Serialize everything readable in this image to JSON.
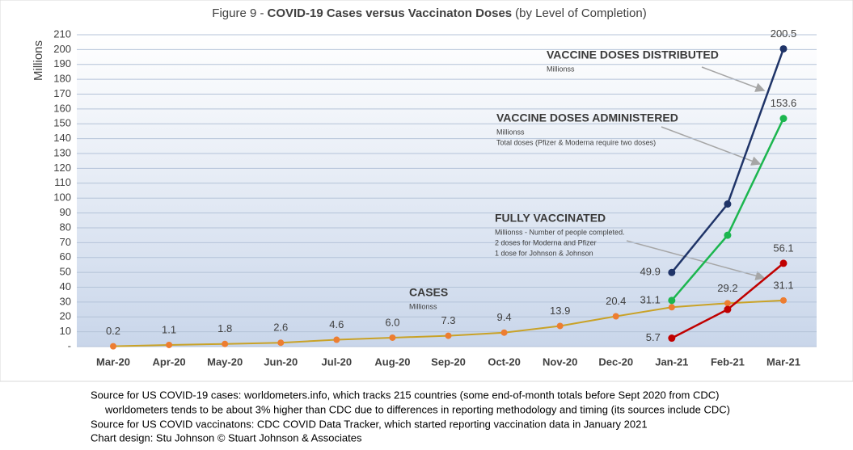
{
  "chart_data": {
    "type": "line",
    "title": [
      "Figure 9 -",
      "COVID-19 Cases versus Vaccinaton Doses",
      "(by Level of Completion)"
    ],
    "ylabel": "Millions",
    "categories": [
      "Mar-20",
      "Apr-20",
      "May-20",
      "Jun-20",
      "Jul-20",
      "Aug-20",
      "Sep-20",
      "Oct-20",
      "Nov-20",
      "Dec-20",
      "Jan-21",
      "Feb-21",
      "Mar-21"
    ],
    "ylim": [
      0,
      210
    ],
    "yticks": [
      {
        "value": 0,
        "label": "-"
      },
      10,
      20,
      30,
      40,
      50,
      60,
      70,
      80,
      90,
      100,
      110,
      120,
      130,
      140,
      150,
      160,
      170,
      180,
      190,
      200,
      210
    ],
    "grid": true,
    "series": [
      {
        "name": "CASES",
        "notes": [
          "Millionss"
        ],
        "color": "#c9a227",
        "marker_color": "#ed7d31",
        "values": [
          0.2,
          1.1,
          1.8,
          2.6,
          4.6,
          6.0,
          7.3,
          9.4,
          13.9,
          20.4,
          26.5,
          29.2,
          31.1
        ],
        "value_labels": [
          "0.2",
          "1.1",
          "1.8",
          "2.6",
          "4.6",
          "6.0",
          "7.3",
          "9.4",
          "13.9",
          "20.4",
          null,
          "29.2",
          "31.1"
        ]
      },
      {
        "name": "VACCINE DOSES DISTRIBUTED",
        "notes": [
          "Millionss"
        ],
        "color": "#1f3468",
        "marker_color": "#1f3468",
        "values": [
          null,
          null,
          null,
          null,
          null,
          null,
          null,
          null,
          null,
          null,
          49.9,
          96,
          200.5
        ],
        "value_labels": [
          null,
          null,
          null,
          null,
          null,
          null,
          null,
          null,
          null,
          null,
          "49.9",
          null,
          "200.5"
        ]
      },
      {
        "name": "VACCINE DOSES ADMINISTERED",
        "notes": [
          "Millionss",
          "Total doses (Pfizer & Moderna require two doses)"
        ],
        "color": "#1cb64f",
        "marker_color": "#1cb64f",
        "values": [
          null,
          null,
          null,
          null,
          null,
          null,
          null,
          null,
          null,
          null,
          31.1,
          75,
          153.6
        ],
        "value_labels": [
          null,
          null,
          null,
          null,
          null,
          null,
          null,
          null,
          null,
          null,
          "31.1",
          null,
          "153.6"
        ]
      },
      {
        "name": "FULLY VACCINATED",
        "notes": [
          "Millionss - Number of people completed.",
          "2 doses for Moderna and Pfizer",
          "1 dose for Johnson & Johnson"
        ],
        "color": "#c00000",
        "marker_color": "#c00000",
        "values": [
          null,
          null,
          null,
          null,
          null,
          null,
          null,
          null,
          null,
          null,
          5.7,
          25,
          56.1
        ],
        "value_labels": [
          null,
          null,
          null,
          null,
          null,
          null,
          null,
          null,
          null,
          null,
          "5.7",
          null,
          "56.1"
        ]
      }
    ],
    "sources": [
      "Source for US COVID-19 cases: worldometers.info, which tracks 215 countries  (some end-of-month totals before Sept 2020 from CDC)",
      "worldometers tends to be about 3% higher than CDC due to differences in reporting methodology and timing (its sources include CDC)",
      "Source for US COVID vaccinatons: CDC COVID Data Tracker, which started reporting vaccination data in January 2021",
      "Chart design: Stu Johnson © Stuart Johnson & Associates"
    ]
  }
}
